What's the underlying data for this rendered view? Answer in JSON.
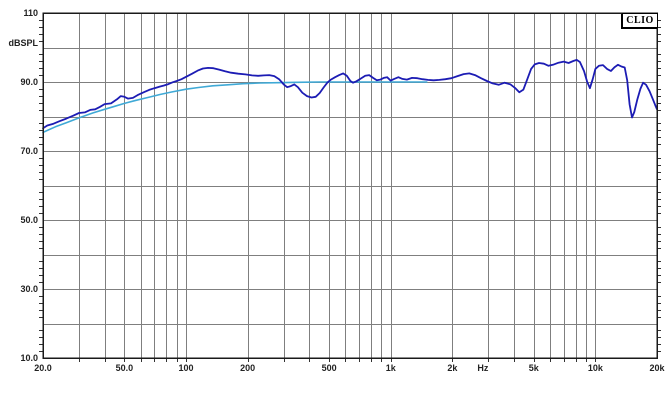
{
  "logo": {
    "text": "CLIO"
  },
  "chart_data": {
    "type": "line",
    "title": "",
    "legend": "none",
    "grid": "on",
    "x_axis": {
      "scale": "log",
      "unit": "Hz",
      "min": 20,
      "max": 20000,
      "ticks": [
        {
          "f": 20,
          "label": "20.0"
        },
        {
          "f": 50,
          "label": "50.0"
        },
        {
          "f": 100,
          "label": "100"
        },
        {
          "f": 200,
          "label": "200"
        },
        {
          "f": 500,
          "label": "500"
        },
        {
          "f": 1000,
          "label": "1k"
        },
        {
          "f": 2000,
          "label": "2k"
        },
        {
          "f": 5000,
          "label": "5k"
        },
        {
          "f": 10000,
          "label": "10k"
        },
        {
          "f": 20000,
          "label": "20k"
        }
      ],
      "unit_label": {
        "text": "Hz",
        "f": 2820
      },
      "gridlines": [
        30,
        40,
        50,
        60,
        70,
        80,
        90,
        100,
        200,
        300,
        400,
        500,
        600,
        700,
        800,
        900,
        1000,
        2000,
        3000,
        4000,
        5000,
        6000,
        7000,
        8000,
        9000,
        10000
      ]
    },
    "y_axis": {
      "unit": "dBSPL",
      "min": 10,
      "max": 110,
      "grid_step": 10,
      "minor_tick_step": 2,
      "ticks": [
        {
          "v": 110,
          "label": "110"
        },
        {
          "v": 90,
          "label": "90.0"
        },
        {
          "v": 70,
          "label": "70.0"
        },
        {
          "v": 50,
          "label": "50.0"
        },
        {
          "v": 30,
          "label": "30.0"
        },
        {
          "v": 10,
          "label": "10.0"
        }
      ],
      "unit_label": {
        "text": "dBSPL",
        "v": 101.3
      }
    },
    "series": [
      {
        "name": "measured-response",
        "color": "#1c1cb4",
        "width": 1.8,
        "points": [
          [
            20,
            76.6
          ],
          [
            21,
            77.4
          ],
          [
            22.5,
            77.9
          ],
          [
            24,
            78.6
          ],
          [
            26,
            79.4
          ],
          [
            28,
            80.2
          ],
          [
            30,
            81.0
          ],
          [
            32,
            81.2
          ],
          [
            34,
            81.9
          ],
          [
            36,
            82.1
          ],
          [
            38,
            82.8
          ],
          [
            40,
            83.6
          ],
          [
            43,
            83.8
          ],
          [
            46,
            85.0
          ],
          [
            48,
            85.9
          ],
          [
            50,
            85.7
          ],
          [
            52,
            85.2
          ],
          [
            55,
            85.4
          ],
          [
            58,
            86.2
          ],
          [
            62,
            87.0
          ],
          [
            66,
            87.7
          ],
          [
            70,
            88.2
          ],
          [
            74,
            88.6
          ],
          [
            78,
            89.0
          ],
          [
            82,
            89.4
          ],
          [
            86,
            89.9
          ],
          [
            90,
            90.3
          ],
          [
            95,
            90.8
          ],
          [
            100,
            91.5
          ],
          [
            107,
            92.4
          ],
          [
            114,
            93.3
          ],
          [
            121,
            93.9
          ],
          [
            128,
            94.1
          ],
          [
            136,
            94.0
          ],
          [
            145,
            93.6
          ],
          [
            155,
            93.1
          ],
          [
            166,
            92.7
          ],
          [
            180,
            92.4
          ],
          [
            195,
            92.2
          ],
          [
            210,
            91.9
          ],
          [
            225,
            91.8
          ],
          [
            240,
            91.9
          ],
          [
            255,
            92.0
          ],
          [
            270,
            91.7
          ],
          [
            285,
            90.8
          ],
          [
            300,
            89.3
          ],
          [
            312,
            88.5
          ],
          [
            325,
            88.8
          ],
          [
            338,
            89.3
          ],
          [
            352,
            88.5
          ],
          [
            370,
            86.9
          ],
          [
            390,
            85.9
          ],
          [
            410,
            85.5
          ],
          [
            430,
            85.7
          ],
          [
            450,
            86.8
          ],
          [
            470,
            88.4
          ],
          [
            490,
            89.8
          ],
          [
            510,
            90.7
          ],
          [
            535,
            91.4
          ],
          [
            560,
            92.0
          ],
          [
            585,
            92.5
          ],
          [
            610,
            91.8
          ],
          [
            635,
            90.3
          ],
          [
            655,
            89.8
          ],
          [
            680,
            90.2
          ],
          [
            715,
            91.0
          ],
          [
            750,
            91.8
          ],
          [
            785,
            92.0
          ],
          [
            820,
            91.2
          ],
          [
            855,
            90.5
          ],
          [
            890,
            90.7
          ],
          [
            925,
            91.2
          ],
          [
            960,
            91.4
          ],
          [
            1000,
            90.4
          ],
          [
            1040,
            90.9
          ],
          [
            1090,
            91.4
          ],
          [
            1140,
            90.9
          ],
          [
            1200,
            90.7
          ],
          [
            1270,
            91.2
          ],
          [
            1350,
            91.1
          ],
          [
            1430,
            90.8
          ],
          [
            1520,
            90.6
          ],
          [
            1620,
            90.5
          ],
          [
            1730,
            90.6
          ],
          [
            1850,
            90.8
          ],
          [
            1980,
            91.1
          ],
          [
            2120,
            91.7
          ],
          [
            2270,
            92.3
          ],
          [
            2420,
            92.5
          ],
          [
            2580,
            92.0
          ],
          [
            2760,
            91.1
          ],
          [
            2950,
            90.3
          ],
          [
            3150,
            89.6
          ],
          [
            3370,
            89.2
          ],
          [
            3600,
            89.8
          ],
          [
            3850,
            89.3
          ],
          [
            4050,
            88.3
          ],
          [
            4250,
            87.0
          ],
          [
            4450,
            87.8
          ],
          [
            4650,
            90.8
          ],
          [
            4850,
            93.8
          ],
          [
            5050,
            95.1
          ],
          [
            5300,
            95.5
          ],
          [
            5600,
            95.3
          ],
          [
            5900,
            94.7
          ],
          [
            6200,
            95.0
          ],
          [
            6600,
            95.6
          ],
          [
            7000,
            95.9
          ],
          [
            7400,
            95.5
          ],
          [
            7800,
            96.1
          ],
          [
            8100,
            96.4
          ],
          [
            8400,
            95.8
          ],
          [
            8800,
            93.2
          ],
          [
            9100,
            90.2
          ],
          [
            9400,
            88.2
          ],
          [
            9700,
            90.8
          ],
          [
            10000,
            93.8
          ],
          [
            10400,
            94.7
          ],
          [
            10900,
            94.9
          ],
          [
            11400,
            93.8
          ],
          [
            11900,
            93.2
          ],
          [
            12400,
            94.3
          ],
          [
            12900,
            95.0
          ],
          [
            13400,
            94.5
          ],
          [
            13900,
            94.2
          ],
          [
            14300,
            90.5
          ],
          [
            14700,
            83.5
          ],
          [
            15100,
            79.7
          ],
          [
            15500,
            81.3
          ],
          [
            16000,
            84.8
          ],
          [
            16600,
            88.0
          ],
          [
            17100,
            89.8
          ],
          [
            17700,
            89.2
          ],
          [
            18400,
            87.3
          ],
          [
            19100,
            85.0
          ],
          [
            19600,
            83.3
          ],
          [
            20000,
            82.1
          ]
        ]
      },
      {
        "name": "smoothed-lf-response",
        "color": "#3fa9d6",
        "width": 1.6,
        "points": [
          [
            20,
            75.4
          ],
          [
            23,
            77.0
          ],
          [
            26,
            78.2
          ],
          [
            30,
            79.6
          ],
          [
            35,
            81.0
          ],
          [
            40,
            82.1
          ],
          [
            45,
            83.0
          ],
          [
            50,
            83.8
          ],
          [
            57,
            84.7
          ],
          [
            65,
            85.5
          ],
          [
            75,
            86.4
          ],
          [
            85,
            87.1
          ],
          [
            100,
            87.9
          ],
          [
            115,
            88.4
          ],
          [
            135,
            88.9
          ],
          [
            160,
            89.2
          ],
          [
            190,
            89.5
          ],
          [
            230,
            89.7
          ],
          [
            280,
            89.8
          ],
          [
            350,
            89.9
          ],
          [
            450,
            90.0
          ],
          [
            600,
            90.0
          ],
          [
            800,
            90.0
          ],
          [
            1100,
            90.0
          ],
          [
            1500,
            90.0
          ]
        ]
      }
    ],
    "style": {
      "background": "#ffffff",
      "grid_color": "#7f7f7f",
      "border_color": "#1a1a1a",
      "tick_color": "#333333",
      "label_color": "#222222"
    }
  }
}
